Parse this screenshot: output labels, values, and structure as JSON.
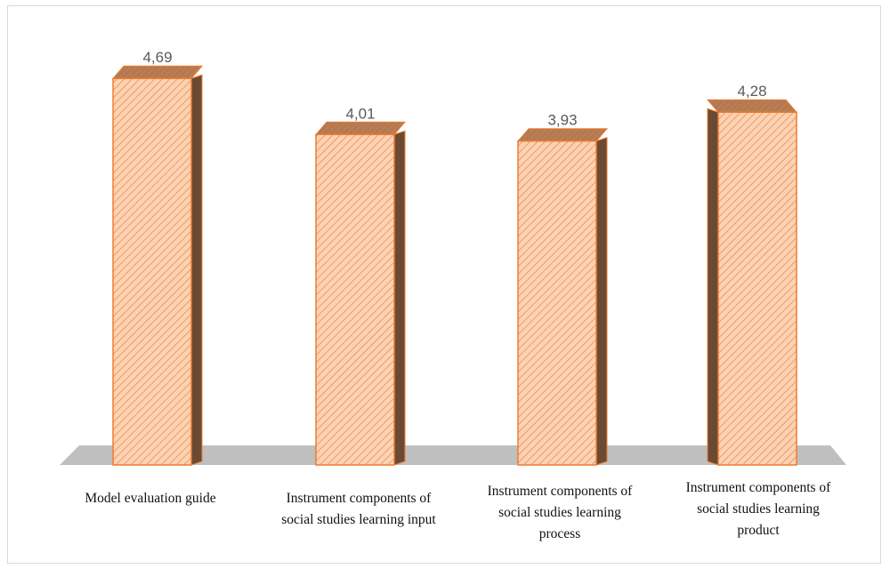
{
  "chart_data": {
    "type": "bar",
    "categories": [
      "Model evaluation guide",
      "Instrument components of social studies learning input",
      "Instrument components of social studies learning process",
      "Instrument components of social studies learning product"
    ],
    "values": [
      4.69,
      4.01,
      3.93,
      4.28
    ],
    "data_labels": [
      "4,69",
      "4,01",
      "3,93",
      "4,28"
    ],
    "title": "",
    "xlabel": "",
    "ylabel": "",
    "ylim": [
      0,
      5
    ],
    "grid": false,
    "legend": "none",
    "style": "3d-cylinder-hatched"
  },
  "colors": {
    "bar_fill": "#fbd3b4",
    "bar_hatch": "#f08a4b",
    "bar_outline": "#ed7d31",
    "bar_side": "#6b4a33",
    "floor": "#bfbfbf"
  }
}
